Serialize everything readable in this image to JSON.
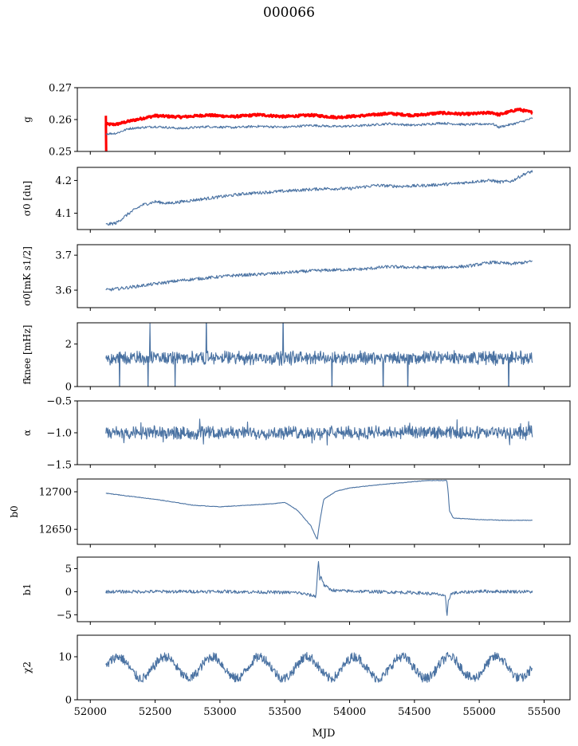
{
  "figure": {
    "title": "000066",
    "xlabel": "MJD"
  },
  "colors": {
    "series": "#4a72a2",
    "reference": "#ff0000",
    "axes": "#000000"
  },
  "x_axis": {
    "range": [
      51900,
      55700
    ],
    "ticks": [
      52000,
      52500,
      53000,
      53500,
      54000,
      54500,
      55000,
      55500
    ],
    "data_start": 52120,
    "data_end": 55410
  },
  "chart_data": [
    {
      "type": "line",
      "ylabel": "g",
      "ylim": [
        0.25,
        0.27
      ],
      "yticks": [
        0.25,
        0.26,
        0.27
      ],
      "ytick_labels": [
        "0.25",
        "0.26",
        "0.27"
      ],
      "series": [
        {
          "color": "red",
          "x": [
            52120,
            52200,
            52300,
            52500,
            52700,
            52900,
            53100,
            53300,
            53500,
            53700,
            53900,
            54100,
            54300,
            54500,
            54700,
            54900,
            55100,
            55150,
            55300,
            55410
          ],
          "y": [
            0.2585,
            0.2585,
            0.2595,
            0.2612,
            0.2608,
            0.2614,
            0.2609,
            0.2615,
            0.2609,
            0.2614,
            0.2607,
            0.2612,
            0.2619,
            0.2613,
            0.2621,
            0.2617,
            0.2622,
            0.2615,
            0.2632,
            0.2622
          ]
        },
        {
          "color": "blue",
          "x": [
            52120,
            52200,
            52300,
            52500,
            52700,
            52900,
            53100,
            53300,
            53500,
            53700,
            53900,
            54100,
            54300,
            54500,
            54700,
            54900,
            55100,
            55150,
            55300,
            55410
          ],
          "y": [
            0.2555,
            0.2557,
            0.2572,
            0.2578,
            0.2572,
            0.2578,
            0.2575,
            0.2579,
            0.2576,
            0.2582,
            0.2578,
            0.2581,
            0.2587,
            0.2582,
            0.2589,
            0.2584,
            0.2587,
            0.2576,
            0.259,
            0.2604
          ]
        }
      ]
    },
    {
      "type": "line",
      "ylabel": "σ0 [du]",
      "ylim": [
        4.05,
        4.24
      ],
      "yticks": [
        4.1,
        4.2
      ],
      "ytick_labels": [
        "4.1",
        "4.2"
      ],
      "series": [
        {
          "x": [
            52120,
            52200,
            52300,
            52400,
            52500,
            52600,
            52800,
            53000,
            53200,
            53400,
            53600,
            53800,
            54000,
            54200,
            54400,
            54600,
            54800,
            55000,
            55100,
            55150,
            55250,
            55350,
            55410
          ],
          "y": [
            4.065,
            4.07,
            4.1,
            4.125,
            4.135,
            4.13,
            4.14,
            4.15,
            4.16,
            4.165,
            4.17,
            4.175,
            4.175,
            4.185,
            4.182,
            4.185,
            4.19,
            4.198,
            4.2,
            4.195,
            4.198,
            4.22,
            4.228
          ]
        }
      ]
    },
    {
      "type": "line",
      "ylabel": "σ0[mK s1/2]",
      "ylim": [
        3.55,
        3.73
      ],
      "yticks": [
        3.6,
        3.7
      ],
      "ytick_labels": [
        "3.6",
        "3.7"
      ],
      "series": [
        {
          "x": [
            52120,
            52300,
            52500,
            52700,
            52900,
            53100,
            53300,
            53500,
            53700,
            53900,
            54100,
            54300,
            54500,
            54700,
            54900,
            55100,
            55250,
            55410
          ],
          "y": [
            3.6,
            3.608,
            3.618,
            3.628,
            3.635,
            3.642,
            3.645,
            3.65,
            3.655,
            3.658,
            3.66,
            3.667,
            3.665,
            3.665,
            3.668,
            3.68,
            3.675,
            3.682
          ]
        }
      ]
    },
    {
      "type": "line",
      "ylabel": "fknee [mHz]",
      "ylim": [
        0,
        3
      ],
      "yticks": [
        0,
        2
      ],
      "ytick_labels": [
        "0",
        "2"
      ],
      "noise_band": {
        "center": 1.35,
        "amplitude": 0.25,
        "spike": 2.1
      }
    },
    {
      "type": "line",
      "ylabel": "α",
      "ylim": [
        -1.5,
        -0.5
      ],
      "yticks": [
        -1.5,
        -1.0,
        -0.5
      ],
      "ytick_labels": [
        "−1.5",
        "−1.0",
        "−0.5"
      ],
      "noise_band": {
        "center": -1.0,
        "amplitude": 0.08,
        "spike": 0.2
      }
    },
    {
      "type": "line",
      "ylabel": "b0",
      "ylim": [
        12630,
        12717
      ],
      "yticks": [
        12650,
        12700
      ],
      "ytick_labels": [
        "12650",
        "12700"
      ],
      "series": [
        {
          "x": [
            52120,
            52500,
            52800,
            53000,
            53200,
            53400,
            53500,
            53600,
            53700,
            53740,
            53750,
            53770,
            53800,
            53900,
            54000,
            54200,
            54400,
            54600,
            54750,
            54760,
            54770,
            54800,
            55000,
            55200,
            55410
          ],
          "y": [
            12698,
            12690,
            12682,
            12680,
            12682,
            12684,
            12686,
            12675,
            12655,
            12640,
            12636,
            12660,
            12690,
            12701,
            12705,
            12709,
            12712,
            12715,
            12715,
            12700,
            12675,
            12665,
            12663,
            12662,
            12662
          ]
        }
      ]
    },
    {
      "type": "line",
      "ylabel": "b1",
      "ylim": [
        -6.5,
        7.5
      ],
      "yticks": [
        -5,
        0,
        5
      ],
      "ytick_labels": [
        "−5",
        "0",
        "5"
      ],
      "series": [
        {
          "x": [
            52120,
            53000,
            53600,
            53740,
            53750,
            53760,
            53770,
            53780,
            53800,
            53850,
            53900,
            54500,
            54700,
            54740,
            54750,
            54760,
            54780,
            54800,
            55000,
            55410
          ],
          "y": [
            0,
            0.05,
            -0.2,
            -1.0,
            3.0,
            6.8,
            2.5,
            3.5,
            1.5,
            0.5,
            0.2,
            -0.2,
            -0.6,
            -1.2,
            -5.7,
            -2.0,
            -0.6,
            -0.3,
            0.1,
            0.0
          ]
        }
      ]
    },
    {
      "type": "line",
      "ylabel": "χ2",
      "ylim": [
        0,
        15
      ],
      "yticks": [
        0,
        10
      ],
      "ytick_labels": [
        "0",
        "10"
      ],
      "periodic": {
        "center": 7.5,
        "amplitude": 2.5,
        "period": 365.25
      }
    }
  ]
}
